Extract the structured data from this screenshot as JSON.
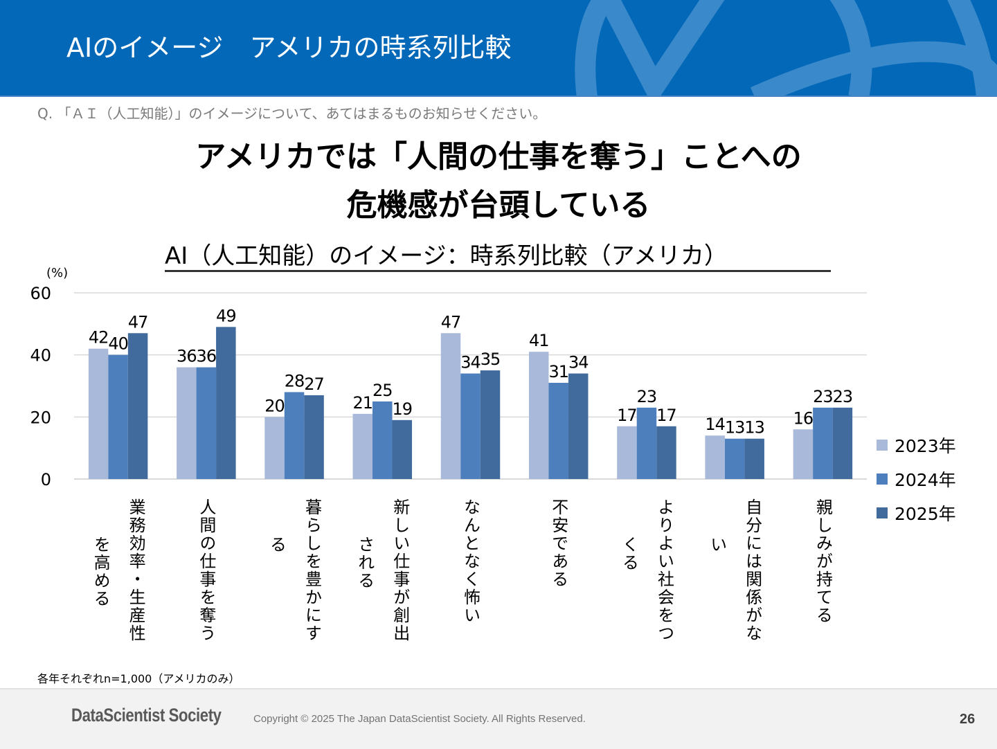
{
  "header": {
    "title": "AIのイメージ　アメリカの時系列比較"
  },
  "question": "Q. 「ＡＩ（人工知能）」のイメージについて、あてはまるものお知らせください。",
  "headline": {
    "line1": "アメリカでは「人間の仕事を奪う」ことへの",
    "line2": "危機感が台頭している"
  },
  "chart_data": {
    "type": "bar",
    "title": "AI（人工知能）のイメージ：時系列比較（アメリカ）",
    "ylabel": "(%)",
    "xlabel": "",
    "ylim": [
      0,
      60
    ],
    "yticks": [
      0,
      20,
      40,
      60
    ],
    "grid": true,
    "legend_position": "right",
    "categories": [
      "業務効率・生産性を高める",
      "人間の仕事を奪う",
      "暮らしを豊かにする",
      "新しい仕事が創出される",
      "なんとなく怖い",
      "不安である",
      "よりよい社会をつくる",
      "自分には関係がない",
      "親しみが持てる"
    ],
    "category_label_lines": [
      [
        "業務効率・生産性",
        "を高める"
      ],
      [
        "人間の仕事を奪う"
      ],
      [
        "暮らしを豊かにす",
        "る"
      ],
      [
        "新しい仕事が創出",
        "される"
      ],
      [
        "なんとなく怖い"
      ],
      [
        "不安である"
      ],
      [
        "よりよい社会をつ",
        "くる"
      ],
      [
        "自分には関係がな",
        "い"
      ],
      [
        "親しみが持てる"
      ]
    ],
    "series": [
      {
        "name": "2023年",
        "color": "#a9b9d9",
        "values": [
          42,
          36,
          20,
          21,
          47,
          41,
          17,
          14,
          16
        ]
      },
      {
        "name": "2024年",
        "color": "#4e7fbd",
        "values": [
          40,
          36,
          28,
          25,
          34,
          31,
          23,
          13,
          23
        ]
      },
      {
        "name": "2025年",
        "color": "#416a9d",
        "values": [
          47,
          49,
          27,
          19,
          35,
          34,
          17,
          13,
          23
        ]
      }
    ]
  },
  "footnote": "各年それぞれn=1,000（アメリカのみ）",
  "footer": {
    "logo": "DataScientist Society",
    "copyright": "Copyright © 2025 The Japan DataScientist Society. All Rights Reserved.",
    "page_number": "26"
  },
  "colors": {
    "header_bg": "#0468b8",
    "header_deco": "#3a8acb",
    "footer_bg": "#f2f2f2"
  }
}
